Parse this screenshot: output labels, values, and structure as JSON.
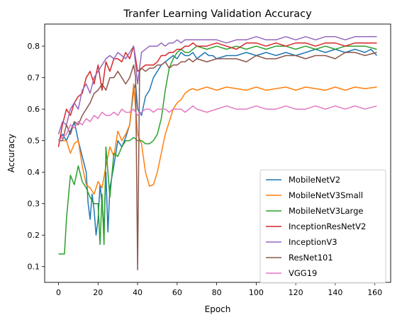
{
  "chart_data": {
    "type": "line",
    "title": "Tranfer Learning Validation Accuracy",
    "xlabel": "Epoch",
    "ylabel": "Accuracy",
    "xlim": [
      -7,
      168
    ],
    "ylim": [
      0.05,
      0.87
    ],
    "xticks": [
      0,
      20,
      40,
      60,
      80,
      100,
      120,
      140,
      160
    ],
    "yticks": [
      0.1,
      0.2,
      0.3,
      0.4,
      0.5,
      0.6,
      0.7,
      0.8
    ],
    "grid": false,
    "legend_position": "lower-right",
    "series": [
      {
        "name": "MobileNetV2",
        "color": "#1f77b4",
        "x": [
          0,
          2,
          4,
          6,
          8,
          10,
          12,
          14,
          15,
          16,
          17,
          18,
          19,
          20,
          21,
          22,
          23,
          24,
          25,
          26,
          28,
          30,
          32,
          34,
          36,
          38,
          39,
          40,
          42,
          44,
          46,
          48,
          50,
          52,
          54,
          56,
          58,
          60,
          62,
          64,
          66,
          68,
          70,
          72,
          74,
          76,
          78,
          80,
          85,
          90,
          95,
          100,
          105,
          110,
          115,
          120,
          125,
          130,
          135,
          140,
          145,
          150,
          155,
          158,
          161
        ],
        "y": [
          0.5,
          0.52,
          0.5,
          0.53,
          0.56,
          0.5,
          0.45,
          0.4,
          0.3,
          0.25,
          0.33,
          0.28,
          0.2,
          0.25,
          0.36,
          0.3,
          0.22,
          0.4,
          0.21,
          0.35,
          0.42,
          0.5,
          0.48,
          0.51,
          0.55,
          0.66,
          0.68,
          0.6,
          0.58,
          0.64,
          0.66,
          0.7,
          0.72,
          0.74,
          0.75,
          0.76,
          0.77,
          0.76,
          0.78,
          0.77,
          0.77,
          0.78,
          0.76,
          0.77,
          0.78,
          0.77,
          0.77,
          0.76,
          0.77,
          0.77,
          0.78,
          0.77,
          0.78,
          0.77,
          0.78,
          0.77,
          0.78,
          0.79,
          0.78,
          0.79,
          0.78,
          0.79,
          0.78,
          0.79,
          0.77
        ]
      },
      {
        "name": "MobileNetV3Small",
        "color": "#ff7f0e",
        "x": [
          0,
          2,
          4,
          6,
          8,
          10,
          12,
          14,
          16,
          18,
          20,
          22,
          24,
          26,
          28,
          30,
          32,
          34,
          36,
          38,
          39,
          40,
          42,
          44,
          46,
          48,
          50,
          52,
          54,
          56,
          58,
          60,
          62,
          64,
          66,
          68,
          70,
          75,
          80,
          85,
          90,
          95,
          100,
          105,
          110,
          115,
          120,
          125,
          130,
          135,
          140,
          145,
          150,
          155,
          161
        ],
        "y": [
          0.5,
          0.5,
          0.5,
          0.46,
          0.49,
          0.5,
          0.42,
          0.36,
          0.35,
          0.33,
          0.37,
          0.35,
          0.42,
          0.48,
          0.45,
          0.53,
          0.5,
          0.52,
          0.55,
          0.68,
          0.6,
          0.52,
          0.49,
          0.4,
          0.355,
          0.36,
          0.4,
          0.46,
          0.52,
          0.56,
          0.6,
          0.62,
          0.63,
          0.65,
          0.66,
          0.665,
          0.66,
          0.67,
          0.66,
          0.67,
          0.665,
          0.66,
          0.67,
          0.66,
          0.665,
          0.67,
          0.66,
          0.67,
          0.665,
          0.66,
          0.67,
          0.66,
          0.67,
          0.665,
          0.67
        ]
      },
      {
        "name": "MobileNetV3Large",
        "color": "#2ca02c",
        "x": [
          0,
          2,
          3,
          4,
          6,
          8,
          10,
          12,
          14,
          16,
          18,
          20,
          21,
          22,
          23,
          24,
          26,
          28,
          30,
          32,
          34,
          36,
          38,
          40,
          42,
          44,
          46,
          48,
          50,
          52,
          54,
          56,
          58,
          60,
          62,
          64,
          66,
          68,
          70,
          75,
          80,
          85,
          90,
          95,
          100,
          105,
          110,
          115,
          120,
          125,
          130,
          135,
          140,
          145,
          150,
          155,
          161
        ],
        "y": [
          0.14,
          0.14,
          0.14,
          0.25,
          0.39,
          0.36,
          0.42,
          0.37,
          0.35,
          0.32,
          0.3,
          0.3,
          0.17,
          0.33,
          0.17,
          0.48,
          0.32,
          0.46,
          0.45,
          0.48,
          0.5,
          0.5,
          0.51,
          0.5,
          0.5,
          0.49,
          0.49,
          0.5,
          0.52,
          0.57,
          0.66,
          0.73,
          0.76,
          0.78,
          0.79,
          0.78,
          0.78,
          0.79,
          0.8,
          0.79,
          0.8,
          0.79,
          0.8,
          0.79,
          0.8,
          0.79,
          0.8,
          0.8,
          0.79,
          0.8,
          0.79,
          0.8,
          0.79,
          0.8,
          0.8,
          0.8,
          0.79
        ]
      },
      {
        "name": "InceptionResNetV2",
        "color": "#d62728",
        "x": [
          0,
          2,
          4,
          6,
          8,
          10,
          12,
          14,
          16,
          18,
          20,
          22,
          24,
          26,
          28,
          30,
          32,
          34,
          36,
          38,
          40,
          42,
          44,
          46,
          48,
          50,
          52,
          54,
          56,
          58,
          60,
          62,
          64,
          66,
          68,
          70,
          75,
          80,
          85,
          90,
          95,
          100,
          105,
          110,
          115,
          120,
          125,
          130,
          135,
          140,
          145,
          150,
          155,
          161
        ],
        "y": [
          0.48,
          0.55,
          0.6,
          0.58,
          0.62,
          0.64,
          0.65,
          0.7,
          0.72,
          0.68,
          0.74,
          0.66,
          0.75,
          0.72,
          0.76,
          0.76,
          0.75,
          0.78,
          0.76,
          0.8,
          0.72,
          0.73,
          0.74,
          0.74,
          0.74,
          0.75,
          0.77,
          0.77,
          0.78,
          0.78,
          0.79,
          0.79,
          0.8,
          0.8,
          0.81,
          0.8,
          0.8,
          0.81,
          0.8,
          0.79,
          0.81,
          0.81,
          0.8,
          0.81,
          0.8,
          0.81,
          0.81,
          0.8,
          0.81,
          0.81,
          0.8,
          0.81,
          0.81,
          0.81
        ]
      },
      {
        "name": "InceptionV3",
        "color": "#9467bd",
        "x": [
          0,
          2,
          4,
          6,
          8,
          10,
          12,
          14,
          16,
          18,
          20,
          22,
          24,
          26,
          28,
          30,
          32,
          34,
          36,
          38,
          40,
          42,
          44,
          46,
          48,
          50,
          52,
          54,
          56,
          58,
          60,
          62,
          64,
          66,
          68,
          70,
          75,
          80,
          85,
          90,
          95,
          100,
          105,
          110,
          115,
          120,
          125,
          130,
          135,
          140,
          145,
          150,
          155,
          161
        ],
        "y": [
          0.52,
          0.56,
          0.55,
          0.6,
          0.62,
          0.6,
          0.66,
          0.68,
          0.65,
          0.7,
          0.72,
          0.74,
          0.76,
          0.77,
          0.76,
          0.78,
          0.77,
          0.76,
          0.78,
          0.8,
          0.68,
          0.78,
          0.79,
          0.8,
          0.8,
          0.8,
          0.81,
          0.8,
          0.81,
          0.81,
          0.82,
          0.81,
          0.82,
          0.82,
          0.82,
          0.82,
          0.82,
          0.82,
          0.81,
          0.82,
          0.82,
          0.83,
          0.82,
          0.82,
          0.83,
          0.82,
          0.83,
          0.82,
          0.83,
          0.83,
          0.82,
          0.83,
          0.83,
          0.83
        ]
      },
      {
        "name": "ResNet101",
        "color": "#8c564b",
        "x": [
          0,
          2,
          4,
          6,
          8,
          10,
          12,
          14,
          16,
          18,
          20,
          22,
          24,
          26,
          28,
          30,
          32,
          34,
          36,
          38,
          39,
          40,
          41,
          42,
          44,
          46,
          48,
          50,
          52,
          54,
          56,
          58,
          60,
          62,
          64,
          66,
          68,
          70,
          75,
          80,
          85,
          90,
          95,
          100,
          105,
          110,
          115,
          120,
          125,
          130,
          135,
          140,
          145,
          150,
          155,
          161
        ],
        "y": [
          0.5,
          0.5,
          0.55,
          0.52,
          0.56,
          0.55,
          0.58,
          0.6,
          0.62,
          0.65,
          0.66,
          0.68,
          0.66,
          0.7,
          0.7,
          0.72,
          0.7,
          0.68,
          0.7,
          0.74,
          0.7,
          0.09,
          0.72,
          0.73,
          0.72,
          0.73,
          0.73,
          0.74,
          0.74,
          0.75,
          0.73,
          0.74,
          0.74,
          0.75,
          0.75,
          0.76,
          0.75,
          0.76,
          0.75,
          0.76,
          0.76,
          0.76,
          0.75,
          0.77,
          0.76,
          0.76,
          0.77,
          0.77,
          0.76,
          0.77,
          0.77,
          0.76,
          0.78,
          0.78,
          0.77,
          0.78
        ]
      },
      {
        "name": "VGG19",
        "color": "#e377c2",
        "x": [
          0,
          2,
          4,
          6,
          8,
          10,
          12,
          14,
          16,
          18,
          20,
          22,
          24,
          26,
          28,
          30,
          32,
          34,
          36,
          38,
          40,
          42,
          44,
          46,
          48,
          50,
          52,
          54,
          56,
          58,
          60,
          62,
          64,
          66,
          68,
          70,
          75,
          80,
          85,
          90,
          95,
          100,
          105,
          110,
          115,
          120,
          125,
          130,
          135,
          140,
          145,
          150,
          155,
          161
        ],
        "y": [
          0.5,
          0.51,
          0.52,
          0.55,
          0.54,
          0.56,
          0.55,
          0.57,
          0.56,
          0.58,
          0.57,
          0.59,
          0.58,
          0.58,
          0.59,
          0.58,
          0.6,
          0.59,
          0.59,
          0.6,
          0.58,
          0.59,
          0.6,
          0.6,
          0.59,
          0.6,
          0.6,
          0.6,
          0.59,
          0.6,
          0.6,
          0.6,
          0.59,
          0.6,
          0.61,
          0.6,
          0.59,
          0.6,
          0.61,
          0.6,
          0.6,
          0.61,
          0.6,
          0.6,
          0.61,
          0.6,
          0.6,
          0.61,
          0.6,
          0.61,
          0.6,
          0.61,
          0.6,
          0.61
        ]
      }
    ]
  }
}
